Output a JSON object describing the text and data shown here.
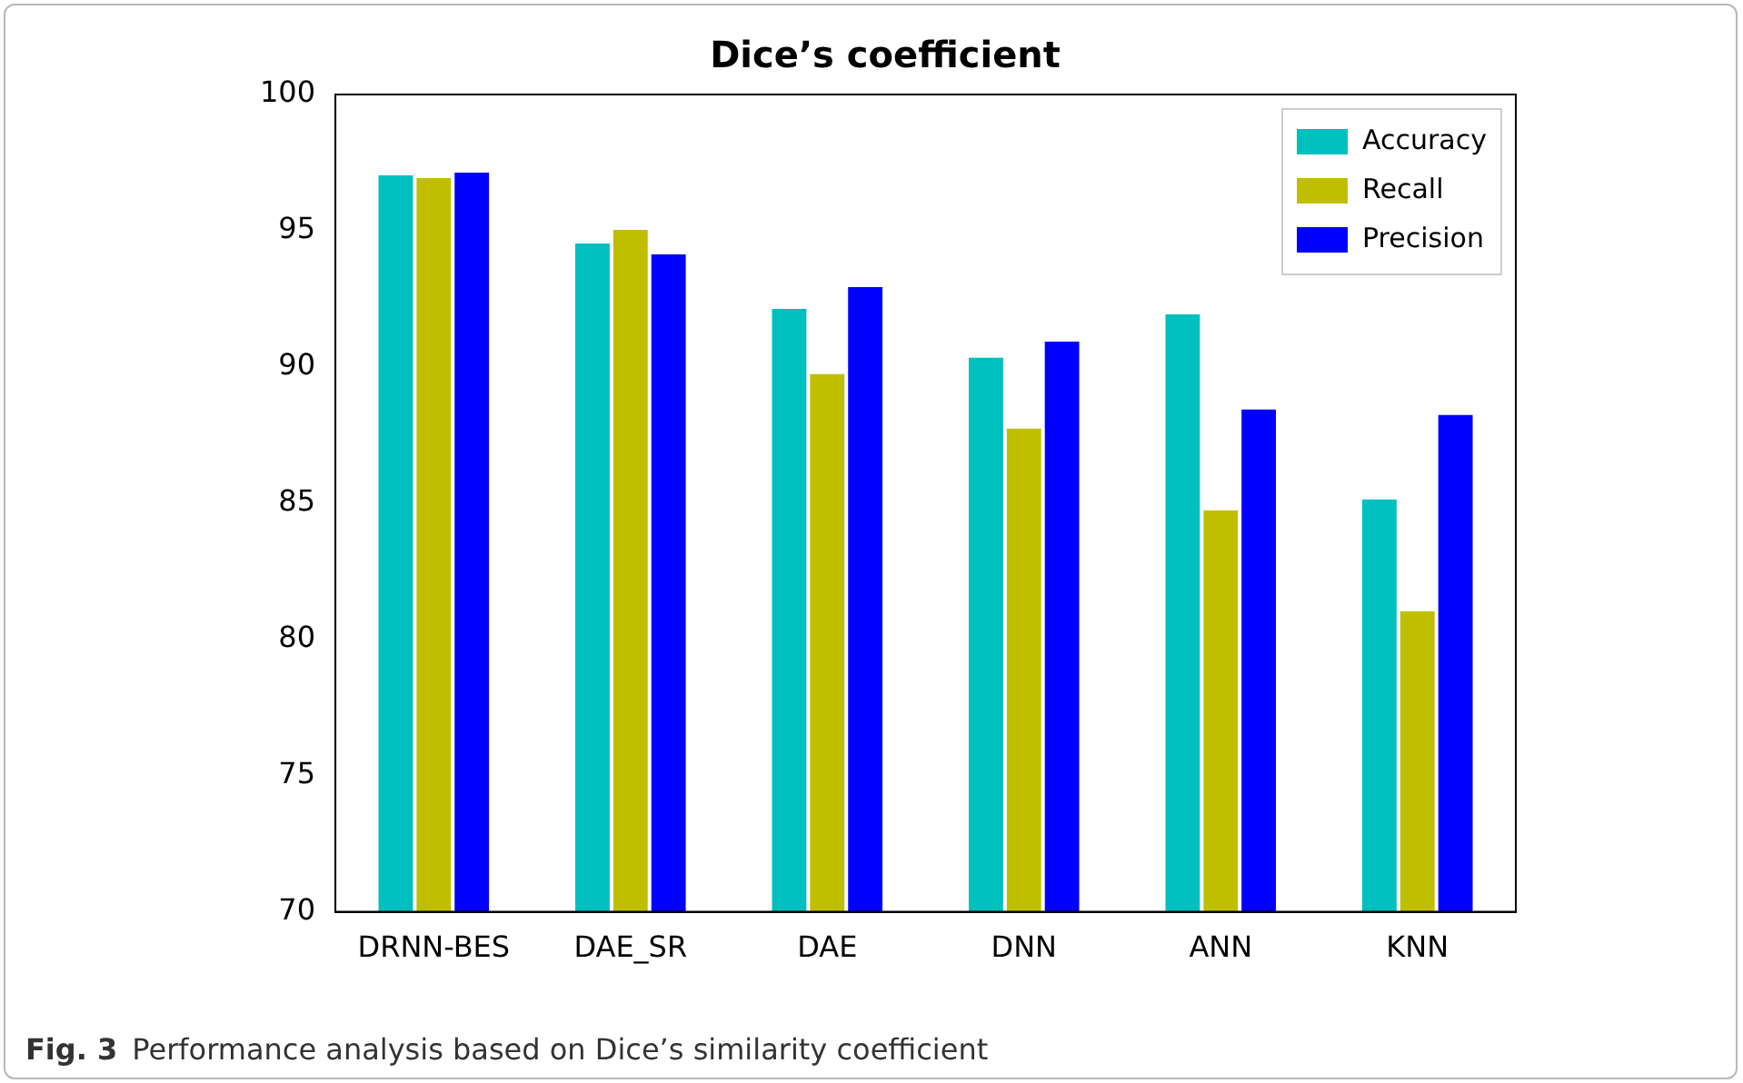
{
  "chart_data": {
    "type": "bar",
    "title": "Dice’s coefficient",
    "categories": [
      "DRNN-BES",
      "DAE_SR",
      "DAE",
      "DNN",
      "ANN",
      "KNN"
    ],
    "series": [
      {
        "name": "Accuracy",
        "color": "#00bfbf",
        "values": [
          97.1,
          94.6,
          92.2,
          90.4,
          92.0,
          85.2
        ]
      },
      {
        "name": "Recall",
        "color": "#bfbf00",
        "values": [
          97.0,
          95.1,
          89.8,
          87.8,
          84.8,
          81.1
        ]
      },
      {
        "name": "Precision",
        "color": "#0000ff",
        "values": [
          97.2,
          94.2,
          93.0,
          91.0,
          88.5,
          88.3
        ]
      }
    ],
    "ylim": [
      70,
      100
    ],
    "yticks": [
      70,
      75,
      80,
      85,
      90,
      95,
      100
    ],
    "grid": false,
    "legend": "top right",
    "annotations": [
      "Fig. 3",
      "Performance analysis based on Dice’s similarity coefficient"
    ]
  }
}
